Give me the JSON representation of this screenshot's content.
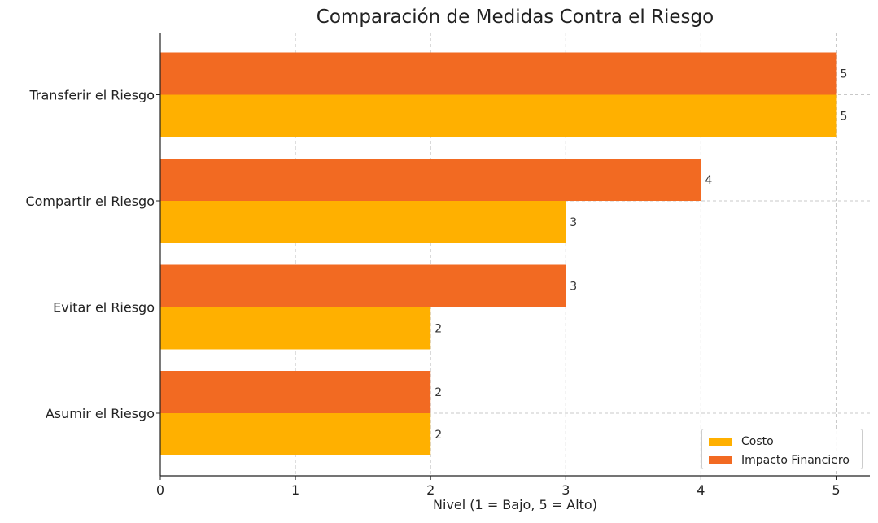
{
  "chart_data": {
    "type": "bar",
    "orientation": "horizontal",
    "title": "Comparación de Medidas Contra el Riesgo",
    "xlabel": "Nivel (1 = Bajo, 5 = Alto)",
    "ylabel": "",
    "categories": [
      "Asumir el Riesgo",
      "Evitar el Riesgo",
      "Compartir el Riesgo",
      "Transferir el Riesgo"
    ],
    "series": [
      {
        "name": "Costo",
        "color": "#FFB000",
        "values": [
          2,
          2,
          3,
          5
        ]
      },
      {
        "name": "Impacto Financiero",
        "color": "#F26A22",
        "values": [
          2,
          3,
          4,
          5
        ]
      }
    ],
    "xlim": [
      0,
      5.25
    ],
    "xticks": [
      0,
      1,
      2,
      3,
      4,
      5
    ],
    "grid": true,
    "legend_position": "bottom-right",
    "data_labels": true
  }
}
